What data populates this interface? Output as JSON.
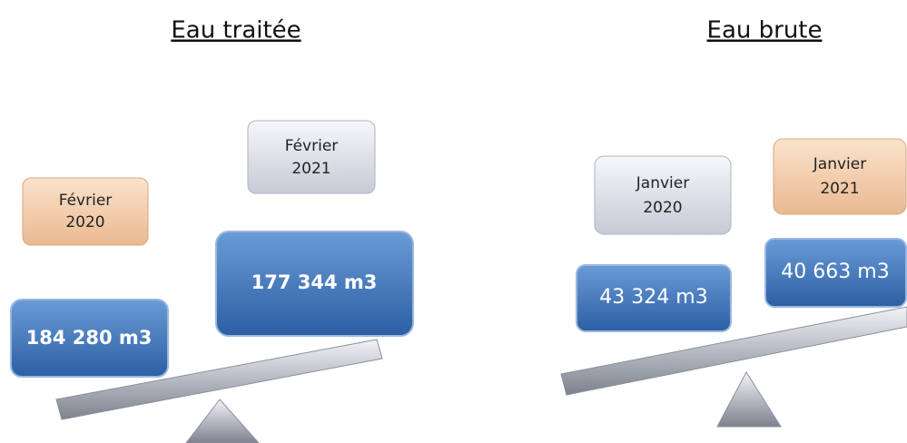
{
  "panels": [
    {
      "title": "Eau traitée",
      "boxes": [
        {
          "month": "Février",
          "year": "2020",
          "value": "184 280 m3"
        },
        {
          "month": "Février",
          "year": "2021",
          "value": "177 344 m3"
        }
      ]
    },
    {
      "title": "Eau brute",
      "boxes": [
        {
          "month": "Janvier",
          "year": "2020",
          "value": "43 324 m3"
        },
        {
          "month": "Janvier",
          "year": "2021",
          "value": "40 663 m3"
        }
      ]
    }
  ]
}
